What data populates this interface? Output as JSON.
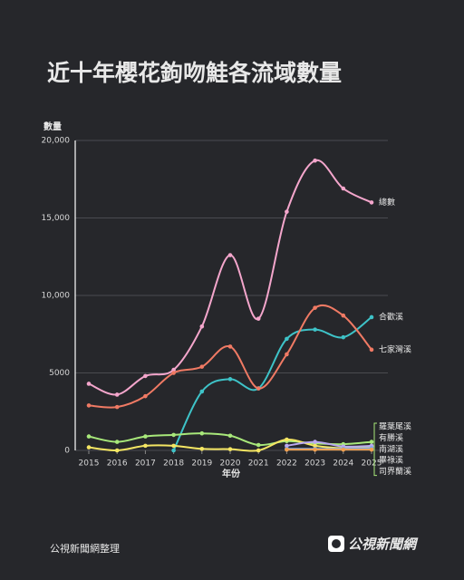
{
  "chart_data": {
    "type": "line",
    "title": "近十年櫻花鉤吻鮭各流域數量",
    "y_label": "數量",
    "x_label": "年份",
    "source": "公視新聞網整理",
    "logo": "公視新聞網",
    "x": [
      2015,
      2016,
      2017,
      2018,
      2019,
      2020,
      2021,
      2022,
      2023,
      2024,
      2025
    ],
    "xlim": [
      2015,
      2025
    ],
    "xticks": [
      2015,
      2016,
      2017,
      2018,
      2019,
      2020,
      2021,
      2022,
      2023,
      2024,
      2025
    ],
    "ylim": [
      0,
      20000
    ],
    "yticks": [
      0,
      5000,
      {
        "value": 10000,
        "label": "10,000"
      },
      {
        "value": 15000,
        "label": "15,000"
      },
      {
        "value": 20000,
        "label": "20,000"
      }
    ],
    "grid": true,
    "series": [
      {
        "name": "總數",
        "color": "#f4a6cc",
        "values": [
          4300,
          3600,
          4800,
          5200,
          8000,
          12600,
          8500,
          15400,
          18700,
          16900,
          16000
        ]
      },
      {
        "name": "合歡溪",
        "color": "#3ec3c8",
        "values": [
          null,
          null,
          null,
          0,
          3800,
          4600,
          4000,
          7200,
          7800,
          7300,
          8600
        ]
      },
      {
        "name": "七家灣溪",
        "color": "#f07a64",
        "values": [
          2900,
          2800,
          3500,
          5000,
          5400,
          6700,
          4000,
          6200,
          9200,
          8700,
          6500
        ]
      },
      {
        "name": "羅葉尾溪",
        "color": "#a8e87a",
        "values": [
          900,
          550,
          900,
          1000,
          1100,
          950,
          350,
          600,
          450,
          400,
          550
        ]
      },
      {
        "name": "有勝溪",
        "color": "#f5e663",
        "values": [
          200,
          0,
          300,
          300,
          100,
          80,
          0,
          700,
          300,
          150,
          250
        ]
      },
      {
        "name": "南湖溪",
        "color": "#b9a8f0",
        "values": [
          null,
          null,
          null,
          null,
          null,
          null,
          null,
          300,
          550,
          250,
          300
        ]
      },
      {
        "name": "畢祿溪",
        "color": "#7fa8e8",
        "values": [
          null,
          null,
          null,
          null,
          null,
          null,
          null,
          100,
          100,
          100,
          150
        ]
      },
      {
        "name": "司界蘭溪",
        "color": "#f0a050",
        "values": [
          null,
          null,
          null,
          null,
          null,
          null,
          null,
          50,
          50,
          50,
          50
        ]
      }
    ]
  }
}
